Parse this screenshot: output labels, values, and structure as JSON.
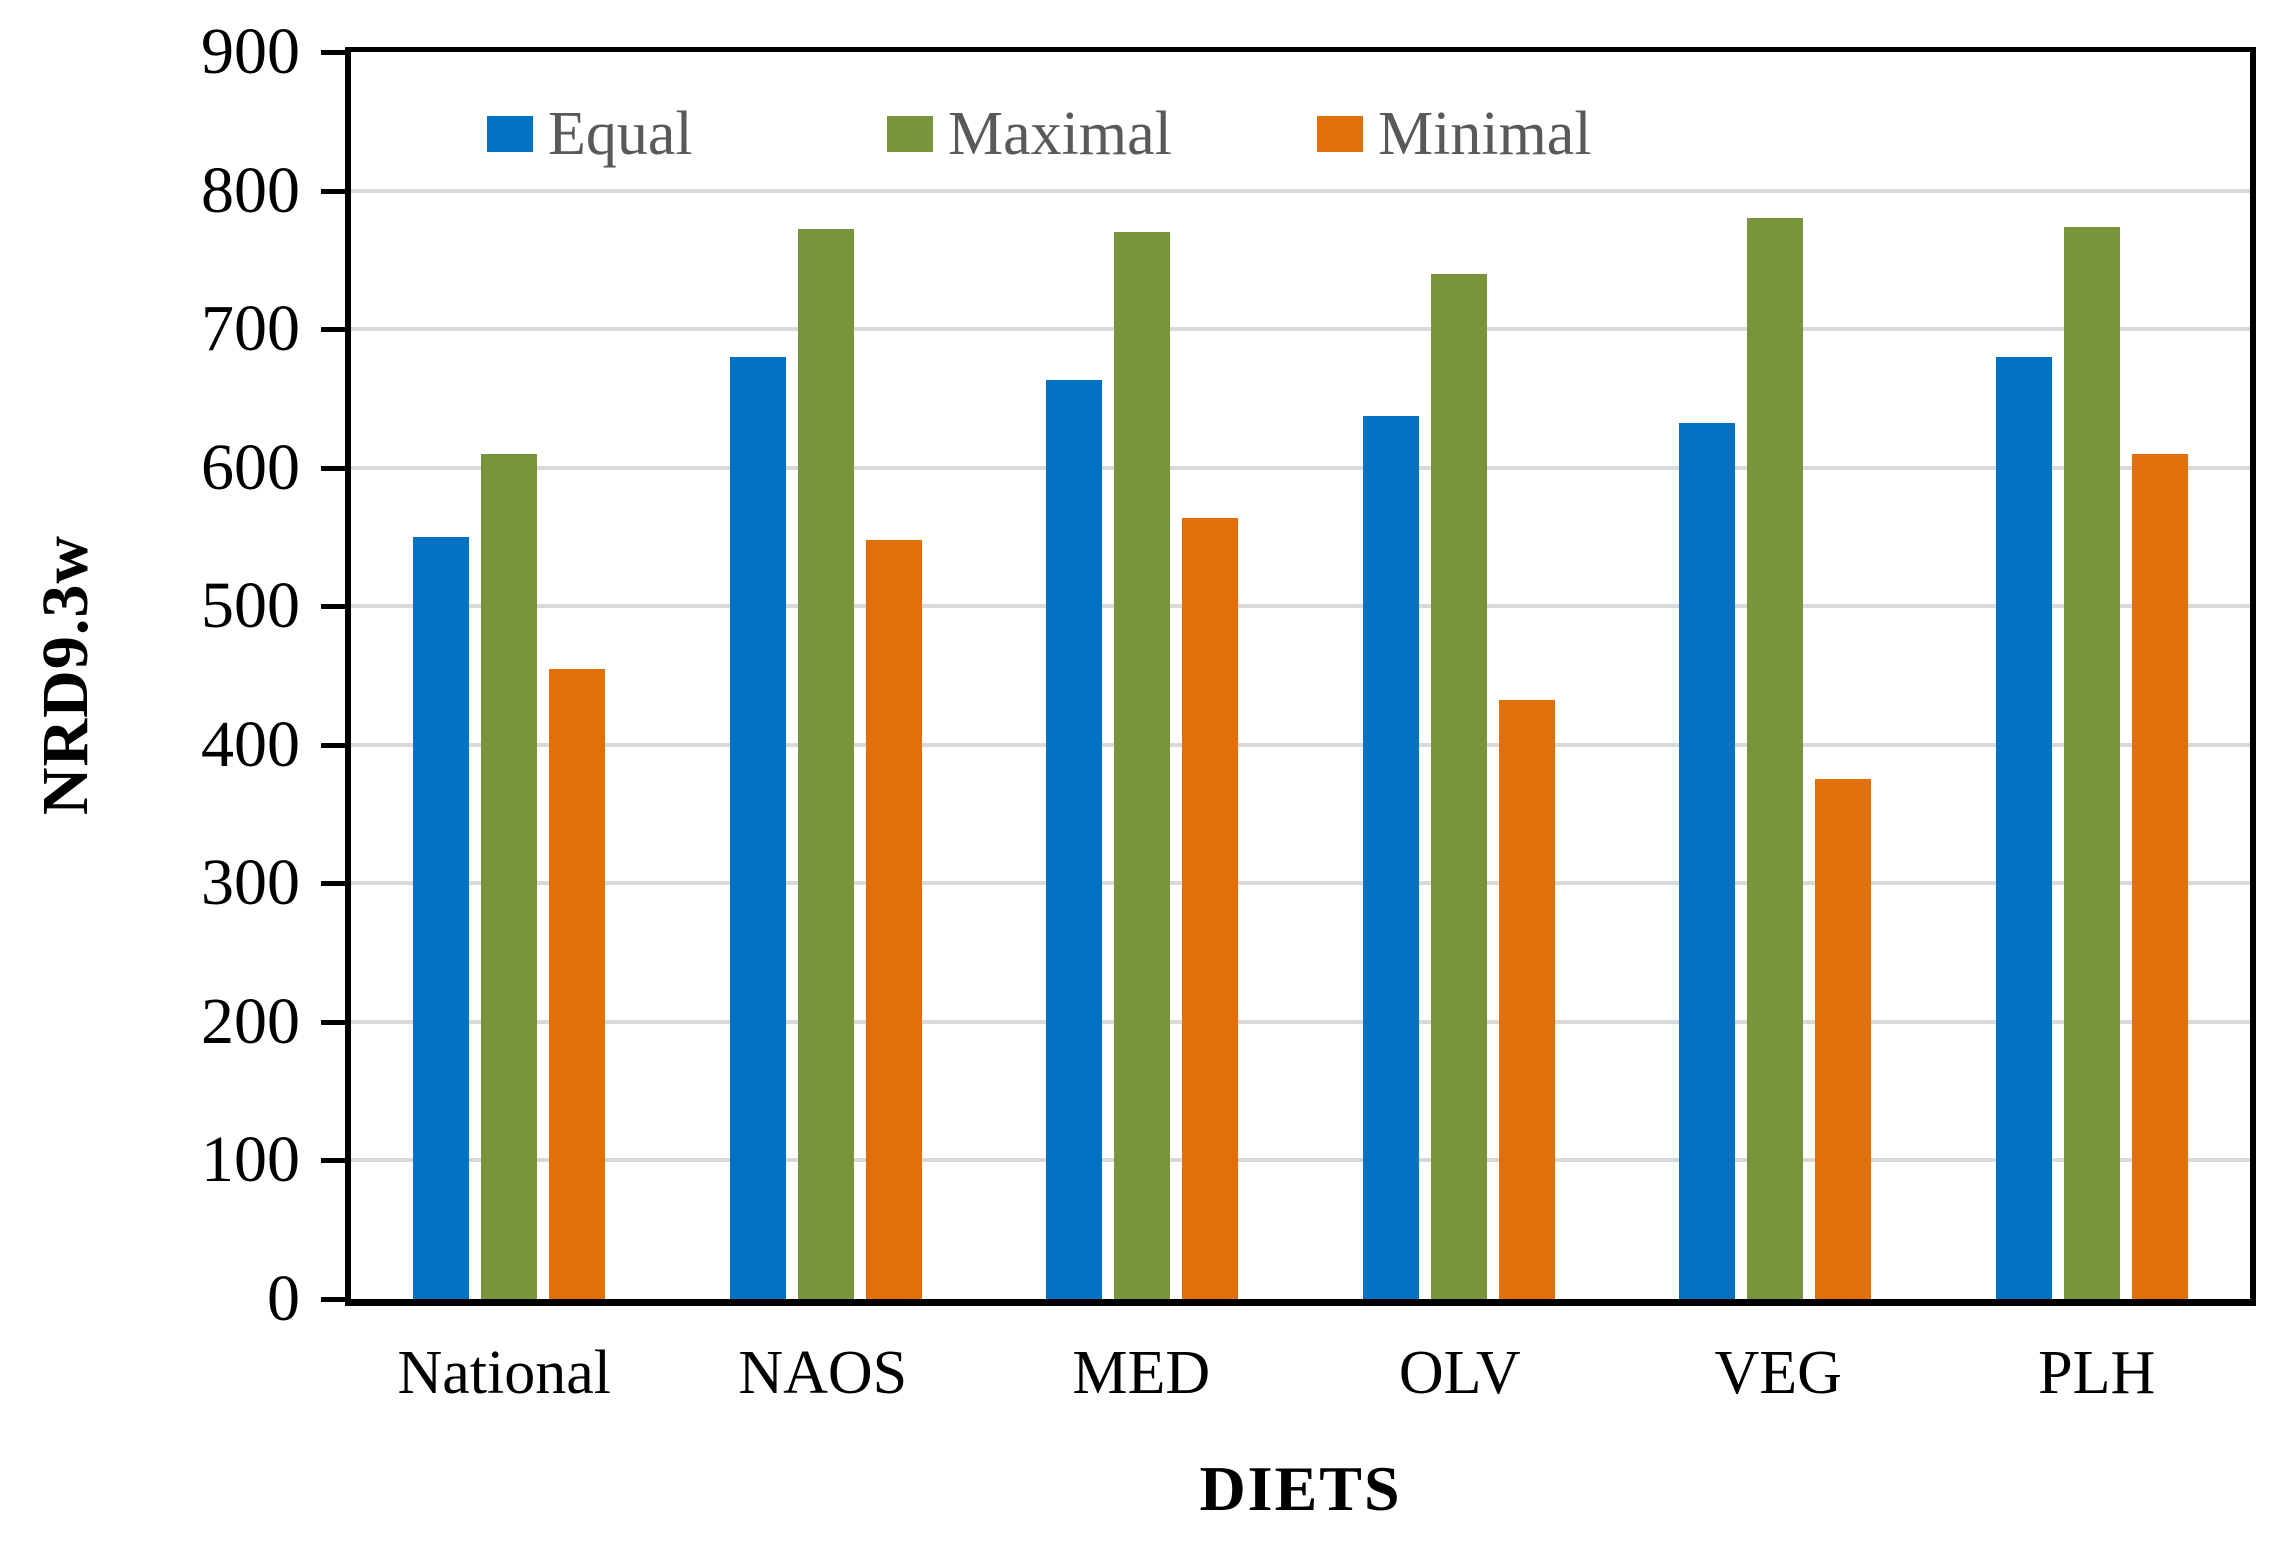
{
  "chart_data": {
    "type": "bar",
    "title": "",
    "xlabel": "DIETS",
    "ylabel": "NRD9.3w",
    "categories": [
      "National",
      "NAOS",
      "MED",
      "OLV",
      "VEG",
      "PLH"
    ],
    "series": [
      {
        "name": "Equal",
        "color": "#0072C1",
        "values": [
          550,
          680,
          663,
          637,
          632,
          680
        ]
      },
      {
        "name": "Maximal",
        "color": "#78943C",
        "values": [
          610,
          772,
          770,
          740,
          780,
          774
        ]
      },
      {
        "name": "Minimal",
        "color": "#E2700A",
        "values": [
          455,
          548,
          564,
          432,
          375,
          610
        ]
      }
    ],
    "ylim": [
      0,
      900
    ],
    "y_tick_step": 100,
    "y_ticks": [
      0,
      100,
      200,
      300,
      400,
      500,
      600,
      700,
      800,
      900
    ],
    "grid": "horizontal",
    "gridline_color": "#D9D9D9",
    "axis_color": "#000000",
    "legend_position": "top-inside",
    "legend_text_color": "#595959",
    "legend_item_x": [
      487,
      887,
      1317
    ]
  }
}
